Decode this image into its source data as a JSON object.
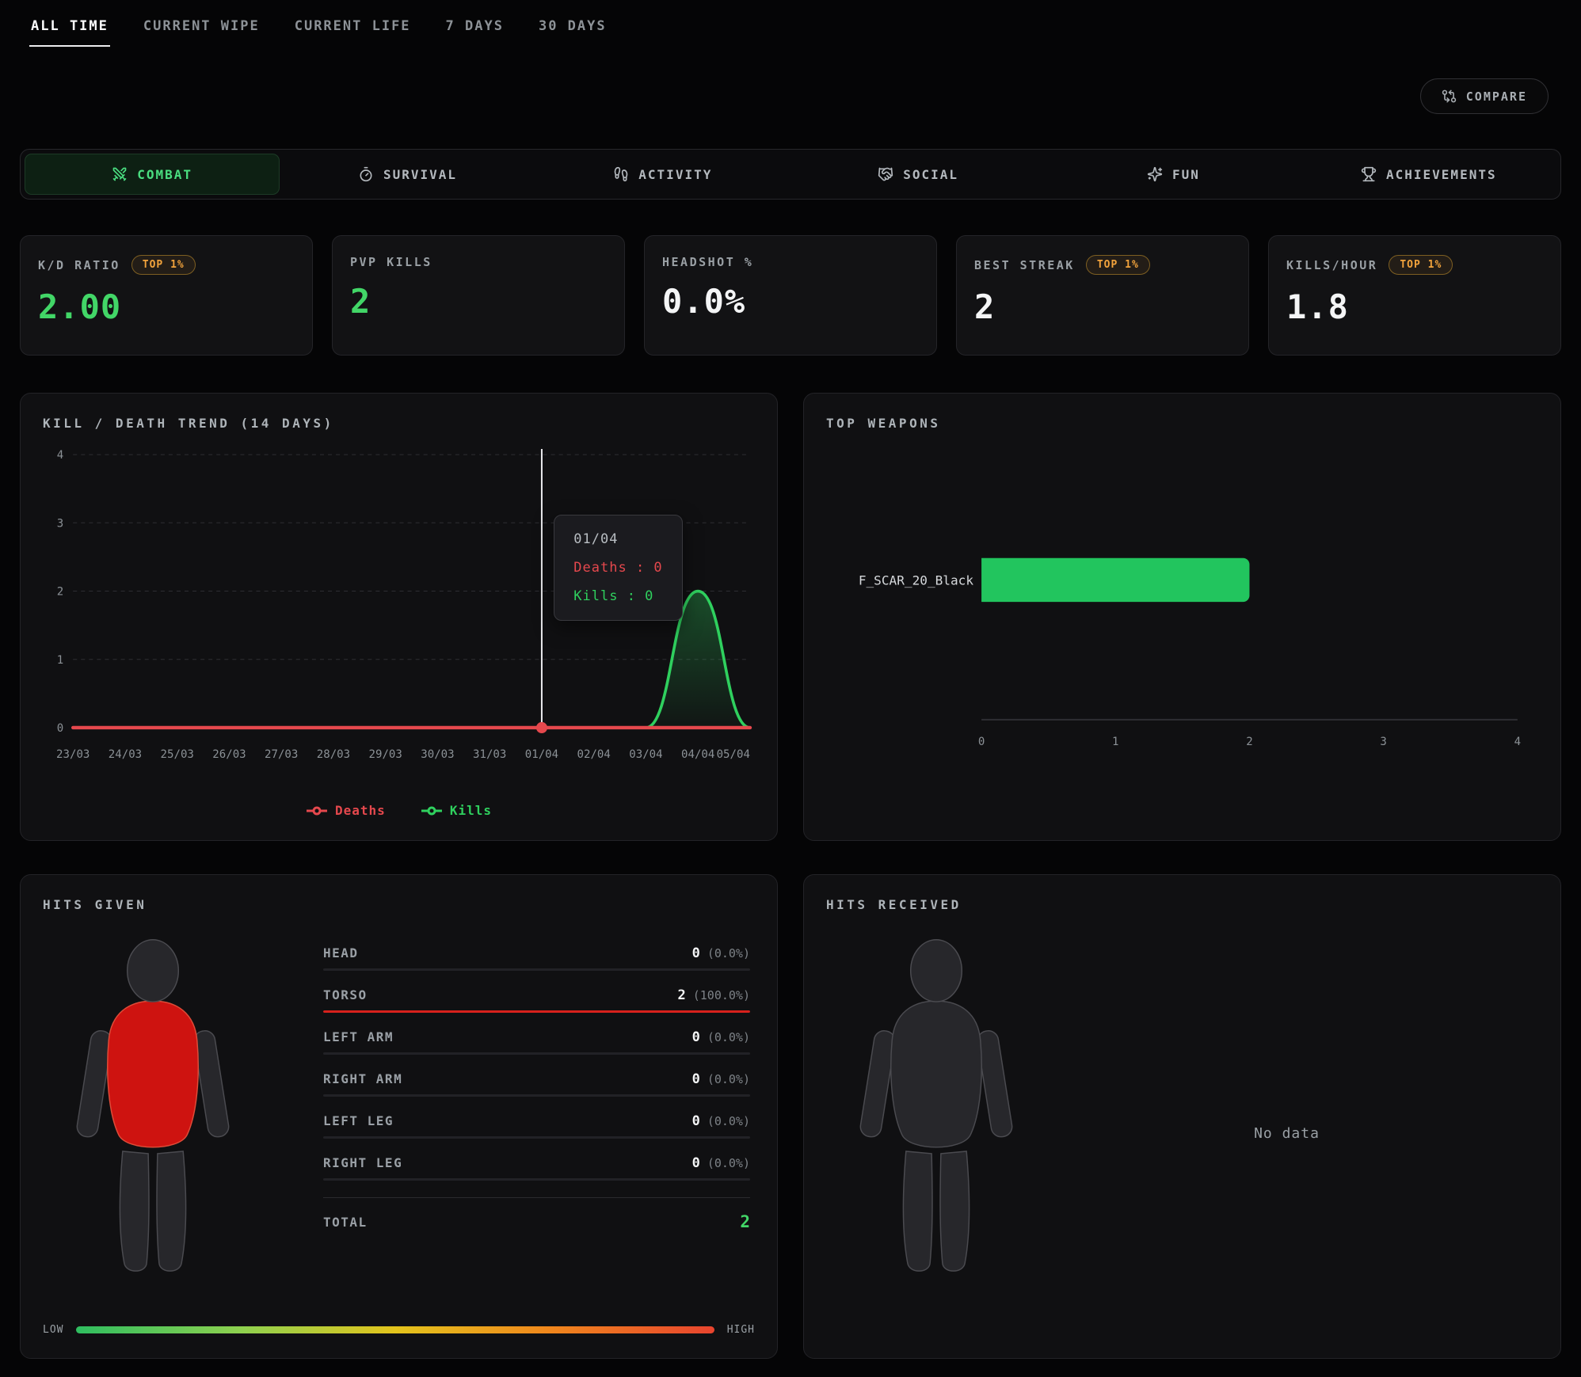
{
  "header": {
    "time_tabs": [
      "ALL TIME",
      "CURRENT WIPE",
      "CURRENT LIFE",
      "7 DAYS",
      "30 DAYS"
    ],
    "active_time_tab": "ALL TIME",
    "compare_label": "COMPARE"
  },
  "category_tabs": [
    {
      "label": "COMBAT",
      "icon": "crossed-swords-icon",
      "active": true
    },
    {
      "label": "SURVIVAL",
      "icon": "stopwatch-icon",
      "active": false
    },
    {
      "label": "ACTIVITY",
      "icon": "footprints-icon",
      "active": false
    },
    {
      "label": "SOCIAL",
      "icon": "handshake-icon",
      "active": false
    },
    {
      "label": "FUN",
      "icon": "sparkles-icon",
      "active": false
    },
    {
      "label": "ACHIEVEMENTS",
      "icon": "trophy-icon",
      "active": false
    }
  ],
  "stat_cards": [
    {
      "label": "K/D RATIO",
      "badge": "TOP 1%",
      "value": "2.00",
      "accent": "green"
    },
    {
      "label": "PVP KILLS",
      "badge": null,
      "value": "2",
      "accent": "green"
    },
    {
      "label": "HEADSHOT %",
      "badge": null,
      "value": "0.0%",
      "accent": "white"
    },
    {
      "label": "BEST STREAK",
      "badge": "TOP 1%",
      "value": "2",
      "accent": "white"
    },
    {
      "label": "KILLS/HOUR",
      "badge": "TOP 1%",
      "value": "1.8",
      "accent": "white"
    }
  ],
  "trend_panel": {
    "title": "KILL / DEATH TREND (14 DAYS)",
    "chart_data": {
      "type": "line",
      "x": [
        "23/03",
        "24/03",
        "25/03",
        "26/03",
        "27/03",
        "28/03",
        "29/03",
        "30/03",
        "31/03",
        "01/04",
        "02/04",
        "03/04",
        "04/04",
        "05/04"
      ],
      "series": [
        {
          "name": "Deaths",
          "color": "#e5484d",
          "values": [
            0,
            0,
            0,
            0,
            0,
            0,
            0,
            0,
            0,
            0,
            0,
            0,
            0,
            0
          ]
        },
        {
          "name": "Kills",
          "color": "#2fd05e",
          "values": [
            0,
            0,
            0,
            0,
            0,
            0,
            0,
            0,
            0,
            0,
            0,
            0,
            2,
            0
          ]
        }
      ],
      "ylim": [
        0,
        4
      ],
      "yticks": [
        0,
        1,
        2,
        3,
        4
      ],
      "grid": true,
      "legend_position": "bottom"
    },
    "tooltip": {
      "date": "01/04",
      "hover_index": 9,
      "lines": [
        {
          "label": "Deaths",
          "value": 0,
          "color": "#e5484d"
        },
        {
          "label": "Kills",
          "value": 0,
          "color": "#2fd05e"
        }
      ]
    }
  },
  "weapons_panel": {
    "title": "TOP WEAPONS",
    "chart_data": {
      "type": "bar",
      "orientation": "horizontal",
      "categories": [
        "F_SCAR_20_Black"
      ],
      "values": [
        2
      ],
      "xlim": [
        0,
        4
      ],
      "xticks": [
        0,
        1,
        2,
        3,
        4
      ],
      "bar_color": "#22c55e"
    }
  },
  "hits_given": {
    "title": "HITS GIVEN",
    "rows": [
      {
        "label": "HEAD",
        "value": 0,
        "pct": "0.0%"
      },
      {
        "label": "TORSO",
        "value": 2,
        "pct": "100.0%"
      },
      {
        "label": "LEFT ARM",
        "value": 0,
        "pct": "0.0%"
      },
      {
        "label": "RIGHT ARM",
        "value": 0,
        "pct": "0.0%"
      },
      {
        "label": "LEFT LEG",
        "value": 0,
        "pct": "0.0%"
      },
      {
        "label": "RIGHT LEG",
        "value": 0,
        "pct": "0.0%"
      }
    ],
    "total_label": "TOTAL",
    "total_value": "2",
    "scale": {
      "low": "LOW",
      "high": "HIGH"
    },
    "highlight_part": "torso"
  },
  "hits_received": {
    "title": "HITS RECEIVED",
    "empty_text": "No data"
  },
  "colors": {
    "accent_green": "#42d667",
    "bar_green": "#22c55e",
    "red": "#e5484d",
    "badge_amber": "#f2a33c"
  }
}
